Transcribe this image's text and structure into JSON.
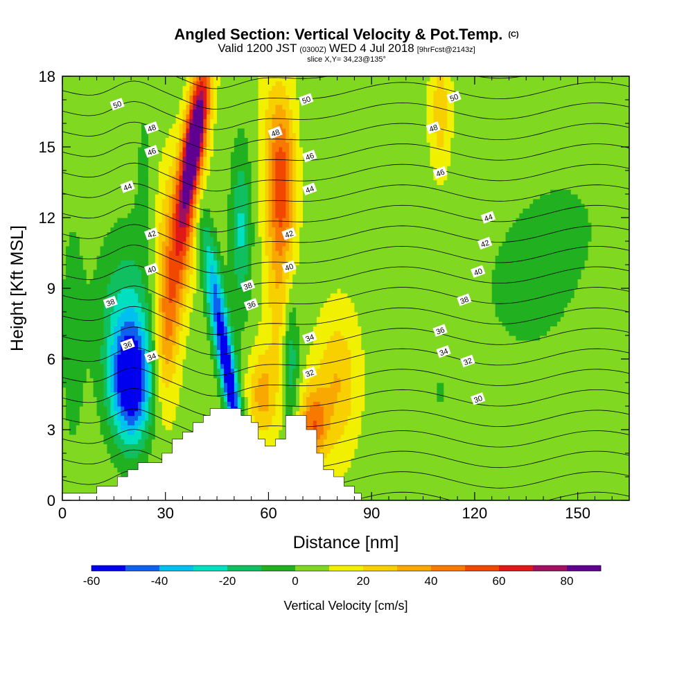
{
  "title": {
    "main": "Angled Section: Vertical Velocity & Pot.Temp.",
    "units": "(C)",
    "valid_a": "Valid 1200 JST",
    "valid_z": "(0300Z)",
    "valid_b": "WED 4 Jul 2018",
    "fcst": "[9hrFcst@2143z]",
    "slice": "slice X,Y= 34,23@135°"
  },
  "chart_data": {
    "type": "heatmap",
    "xlabel": "Distance [nm]",
    "ylabel": "Height [Kft MSL]",
    "xlim": [
      0,
      165
    ],
    "ylim": [
      0,
      18
    ],
    "xticks": [
      "0",
      "30",
      "60",
      "90",
      "120",
      "150"
    ],
    "yticks": [
      "0",
      "3",
      "6",
      "9",
      "12",
      "15",
      "18"
    ],
    "colorbar": {
      "label": "Vertical Velocity [cm/s]",
      "tick_labels": [
        "-60",
        "-40",
        "-20",
        "0",
        "20",
        "40",
        "60",
        "80"
      ],
      "boundaries": [
        -60,
        -50,
        -40,
        -30,
        -20,
        -10,
        0,
        10,
        20,
        30,
        40,
        50,
        60,
        70,
        80,
        90
      ],
      "colors": [
        "#0000ee",
        "#1060ee",
        "#00c0f0",
        "#00e0c0",
        "#10c060",
        "#20b020",
        "#80d820",
        "#f0f000",
        "#f8d000",
        "#f8a800",
        "#f87800",
        "#f04800",
        "#e01818",
        "#a01060",
        "#600090"
      ]
    },
    "contour_labels": [
      {
        "text": "50",
        "x": 16,
        "y": 16.8
      },
      {
        "text": "48",
        "x": 26,
        "y": 15.8
      },
      {
        "text": "46",
        "x": 26,
        "y": 14.8
      },
      {
        "text": "44",
        "x": 19,
        "y": 13.3
      },
      {
        "text": "42",
        "x": 26,
        "y": 11.3
      },
      {
        "text": "40",
        "x": 26,
        "y": 9.8
      },
      {
        "text": "38",
        "x": 14,
        "y": 8.4
      },
      {
        "text": "36",
        "x": 19,
        "y": 6.6
      },
      {
        "text": "34",
        "x": 26,
        "y": 6.1
      },
      {
        "text": "50",
        "x": 71,
        "y": 17.0
      },
      {
        "text": "48",
        "x": 62,
        "y": 15.6
      },
      {
        "text": "46",
        "x": 72,
        "y": 14.6
      },
      {
        "text": "44",
        "x": 72,
        "y": 13.2
      },
      {
        "text": "42",
        "x": 66,
        "y": 11.3
      },
      {
        "text": "40",
        "x": 66,
        "y": 9.9
      },
      {
        "text": "38",
        "x": 54,
        "y": 9.1
      },
      {
        "text": "36",
        "x": 55,
        "y": 8.3
      },
      {
        "text": "34",
        "x": 72,
        "y": 6.9
      },
      {
        "text": "32",
        "x": 72,
        "y": 5.4
      },
      {
        "text": "50",
        "x": 114,
        "y": 17.1
      },
      {
        "text": "48",
        "x": 108,
        "y": 15.8
      },
      {
        "text": "46",
        "x": 110,
        "y": 13.9
      },
      {
        "text": "44",
        "x": 124,
        "y": 12.0
      },
      {
        "text": "42",
        "x": 123,
        "y": 10.9
      },
      {
        "text": "40",
        "x": 121,
        "y": 9.7
      },
      {
        "text": "38",
        "x": 117,
        "y": 8.5
      },
      {
        "text": "36",
        "x": 110,
        "y": 7.2
      },
      {
        "text": "34",
        "x": 111,
        "y": 6.3
      },
      {
        "text": "32",
        "x": 118,
        "y": 5.9
      },
      {
        "text": "30",
        "x": 121,
        "y": 4.3
      }
    ],
    "terrain": [
      [
        0,
        0.3
      ],
      [
        10,
        0.3
      ],
      [
        10,
        0.6
      ],
      [
        16,
        0.6
      ],
      [
        16,
        1.0
      ],
      [
        19,
        1.0
      ],
      [
        19,
        1.3
      ],
      [
        22,
        1.3
      ],
      [
        22,
        1.6
      ],
      [
        25,
        1.6
      ],
      [
        25,
        1.6
      ],
      [
        29,
        1.6
      ],
      [
        29,
        2.0
      ],
      [
        32,
        2.0
      ],
      [
        32,
        2.6
      ],
      [
        35,
        2.6
      ],
      [
        35,
        2.9
      ],
      [
        38,
        2.9
      ],
      [
        38,
        3.3
      ],
      [
        41,
        3.3
      ],
      [
        41,
        3.6
      ],
      [
        43,
        3.6
      ],
      [
        43,
        3.9
      ],
      [
        52,
        3.9
      ],
      [
        52,
        3.6
      ],
      [
        55,
        3.6
      ],
      [
        55,
        3.3
      ],
      [
        57,
        3.3
      ],
      [
        57,
        2.6
      ],
      [
        59,
        2.6
      ],
      [
        59,
        2.3
      ],
      [
        62,
        2.3
      ],
      [
        62,
        2.6
      ],
      [
        65,
        2.6
      ],
      [
        65,
        3.6
      ],
      [
        71,
        3.6
      ],
      [
        71,
        3.0
      ],
      [
        74,
        3.0
      ],
      [
        74,
        2.0
      ],
      [
        76,
        2.0
      ],
      [
        76,
        1.3
      ],
      [
        79,
        1.3
      ],
      [
        79,
        1.0
      ],
      [
        82,
        1.0
      ],
      [
        82,
        0.6
      ],
      [
        85,
        0.6
      ],
      [
        85,
        0.3
      ],
      [
        87,
        0.3
      ],
      [
        87,
        0.0
      ],
      [
        165,
        0.0
      ]
    ],
    "grid": false,
    "legend": "colorbar bottom"
  },
  "colors": {
    "background": "#ffffff",
    "frame": "#000000",
    "contour": "#000000",
    "terrain": "#ffffff"
  }
}
